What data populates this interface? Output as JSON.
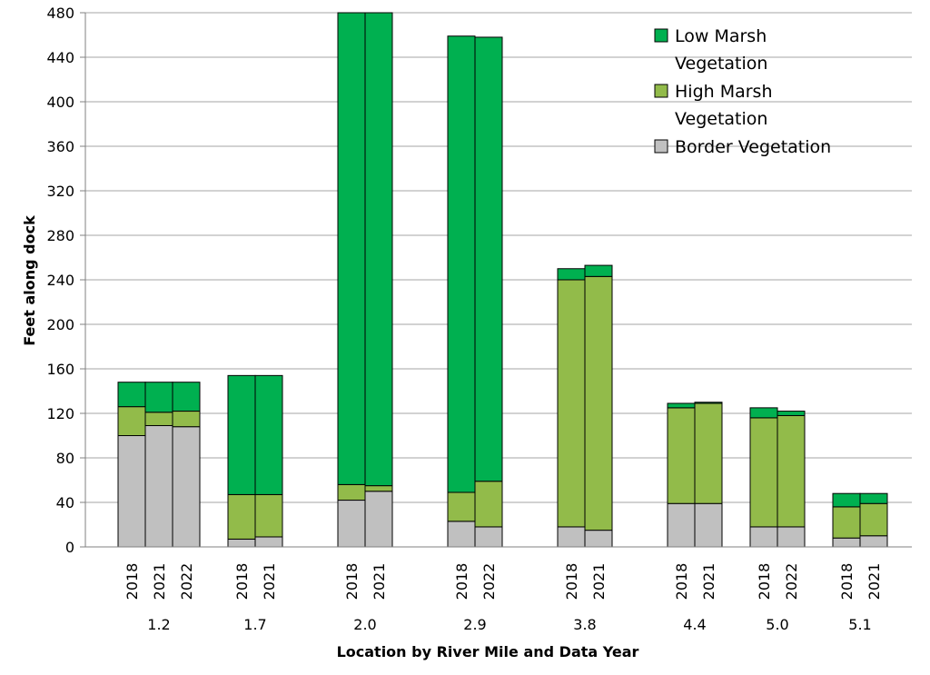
{
  "chart_data": {
    "type": "bar",
    "stacked": true,
    "xlabel": "Location by River Mile and Data Year",
    "ylabel": "Feet along dock",
    "ylim": [
      0,
      480
    ],
    "yticks": [
      0,
      40,
      80,
      120,
      160,
      200,
      240,
      280,
      320,
      360,
      400,
      440,
      480
    ],
    "grid": true,
    "legend_position": "top-right",
    "series": [
      {
        "name": "Border Vegetation",
        "color": "#c0c0c0"
      },
      {
        "name": "High Marsh Vegetation",
        "color": "#92bb4a"
      },
      {
        "name": "Low Marsh Vegetation",
        "color": "#00b050"
      }
    ],
    "legend": [
      {
        "series": 2,
        "lines": [
          "Low Marsh",
          "Vegetation"
        ]
      },
      {
        "series": 1,
        "lines": [
          "High Marsh",
          "Vegetation"
        ]
      },
      {
        "series": 0,
        "lines": [
          "Border Vegetation"
        ]
      }
    ],
    "groups": [
      {
        "location": "1.2",
        "bars": [
          {
            "year": "2018",
            "values": [
              100,
              26,
              22
            ]
          },
          {
            "year": "2021",
            "values": [
              109,
              12,
              27
            ]
          },
          {
            "year": "2022",
            "values": [
              108,
              14,
              26
            ]
          }
        ]
      },
      {
        "location": "1.7",
        "bars": [
          {
            "year": "2018",
            "values": [
              7,
              40,
              107
            ]
          },
          {
            "year": "2021",
            "values": [
              9,
              38,
              107
            ]
          }
        ]
      },
      {
        "location": "2.0",
        "bars": [
          {
            "year": "2018",
            "values": [
              42,
              14,
              424
            ]
          },
          {
            "year": "2021",
            "values": [
              50,
              5,
              425
            ]
          }
        ]
      },
      {
        "location": "2.9",
        "bars": [
          {
            "year": "2018",
            "values": [
              23,
              26,
              410
            ]
          },
          {
            "year": "2022",
            "values": [
              18,
              41,
              399
            ]
          }
        ]
      },
      {
        "location": "3.8",
        "bars": [
          {
            "year": "2018",
            "values": [
              18,
              222,
              10
            ]
          },
          {
            "year": "2021",
            "values": [
              15,
              228,
              10
            ]
          }
        ]
      },
      {
        "location": "4.4",
        "bars": [
          {
            "year": "2018",
            "values": [
              39,
              86,
              4
            ]
          },
          {
            "year": "2021",
            "values": [
              39,
              90,
              1
            ]
          }
        ]
      },
      {
        "location": "5.0",
        "bars": [
          {
            "year": "2018",
            "values": [
              18,
              98,
              9
            ]
          },
          {
            "year": "2022",
            "values": [
              18,
              100,
              4
            ]
          }
        ]
      },
      {
        "location": "5.1",
        "bars": [
          {
            "year": "2018",
            "values": [
              8,
              28,
              12
            ]
          },
          {
            "year": "2021",
            "values": [
              10,
              29,
              9
            ]
          }
        ]
      }
    ]
  }
}
